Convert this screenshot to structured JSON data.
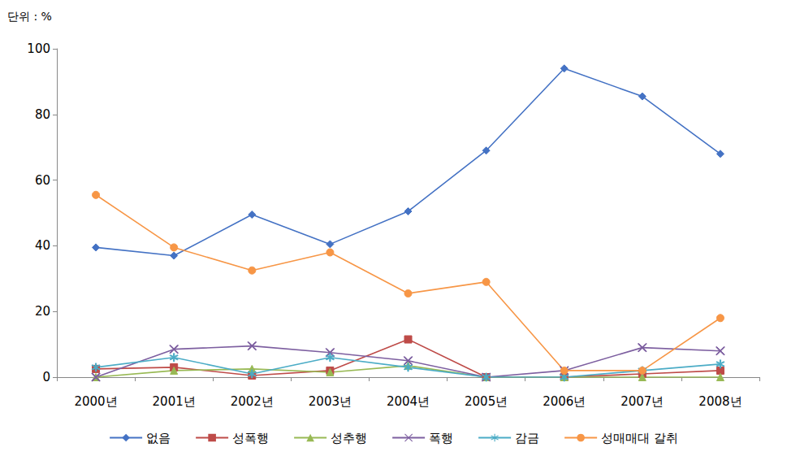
{
  "chart_data": {
    "type": "line",
    "ylabel": "단위 : %",
    "categories": [
      "2000년",
      "2001년",
      "2002년",
      "2003년",
      "2004년",
      "2005년",
      "2006년",
      "2007년",
      "2008년"
    ],
    "series": [
      {
        "name": "없음",
        "color": "#4472c4",
        "marker": "diamond",
        "values": [
          39.5,
          37,
          49.5,
          40.5,
          50.5,
          69,
          94,
          85.5,
          68
        ]
      },
      {
        "name": "성폭행",
        "color": "#be4b48",
        "marker": "square",
        "values": [
          2.5,
          3,
          0.5,
          2,
          11.5,
          0,
          0,
          1,
          2
        ]
      },
      {
        "name": "성추행",
        "color": "#98b954",
        "marker": "triangle",
        "values": [
          0,
          2,
          2.5,
          1.5,
          3.5,
          0,
          0,
          0,
          0
        ]
      },
      {
        "name": "폭행",
        "color": "#7d5fa0",
        "marker": "x",
        "values": [
          0,
          8.5,
          9.5,
          7.5,
          5,
          0,
          2,
          9,
          8
        ]
      },
      {
        "name": "감금",
        "color": "#4bacc6",
        "marker": "asterisk",
        "values": [
          3,
          6,
          1,
          6,
          3,
          0,
          0,
          2,
          4
        ]
      },
      {
        "name": "성매매대 갈취",
        "color": "#f79646",
        "marker": "circle",
        "values": [
          55.5,
          39.5,
          32.5,
          38,
          25.5,
          29,
          2,
          2,
          18
        ]
      }
    ],
    "ylim": [
      0,
      100
    ],
    "yticks": [
      0,
      20,
      40,
      60,
      80,
      100
    ],
    "grid": false,
    "legend": "bottom"
  }
}
